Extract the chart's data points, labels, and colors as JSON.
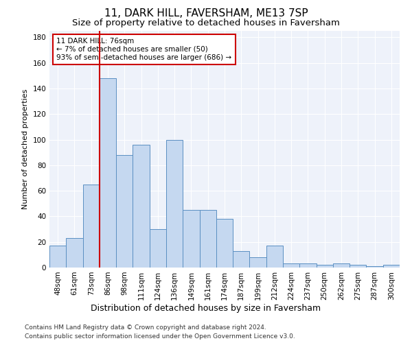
{
  "title1": "11, DARK HILL, FAVERSHAM, ME13 7SP",
  "title2": "Size of property relative to detached houses in Faversham",
  "xlabel": "Distribution of detached houses by size in Faversham",
  "ylabel": "Number of detached properties",
  "categories": [
    "48sqm",
    "61sqm",
    "73sqm",
    "86sqm",
    "98sqm",
    "111sqm",
    "124sqm",
    "136sqm",
    "149sqm",
    "161sqm",
    "174sqm",
    "187sqm",
    "199sqm",
    "212sqm",
    "224sqm",
    "237sqm",
    "250sqm",
    "262sqm",
    "275sqm",
    "287sqm",
    "300sqm"
  ],
  "values": [
    17,
    23,
    65,
    148,
    88,
    96,
    30,
    100,
    45,
    45,
    38,
    13,
    8,
    17,
    3,
    3,
    2,
    3,
    2,
    1,
    2
  ],
  "bar_color": "#c5d8f0",
  "bar_edge_color": "#5a8fc2",
  "red_line_x": 2.5,
  "marker_color": "#cc0000",
  "annotation_text": "11 DARK HILL: 76sqm\n← 7% of detached houses are smaller (50)\n93% of semi-detached houses are larger (686) →",
  "annotation_box_color": "#ffffff",
  "annotation_box_edge": "#cc0000",
  "ylim": [
    0,
    185
  ],
  "yticks": [
    0,
    20,
    40,
    60,
    80,
    100,
    120,
    140,
    160,
    180
  ],
  "footer1": "Contains HM Land Registry data © Crown copyright and database right 2024.",
  "footer2": "Contains public sector information licensed under the Open Government Licence v3.0.",
  "background_color": "#eef2fa",
  "title1_fontsize": 11,
  "title2_fontsize": 9.5,
  "xlabel_fontsize": 9,
  "ylabel_fontsize": 8,
  "tick_fontsize": 7.5,
  "footer_fontsize": 6.5
}
